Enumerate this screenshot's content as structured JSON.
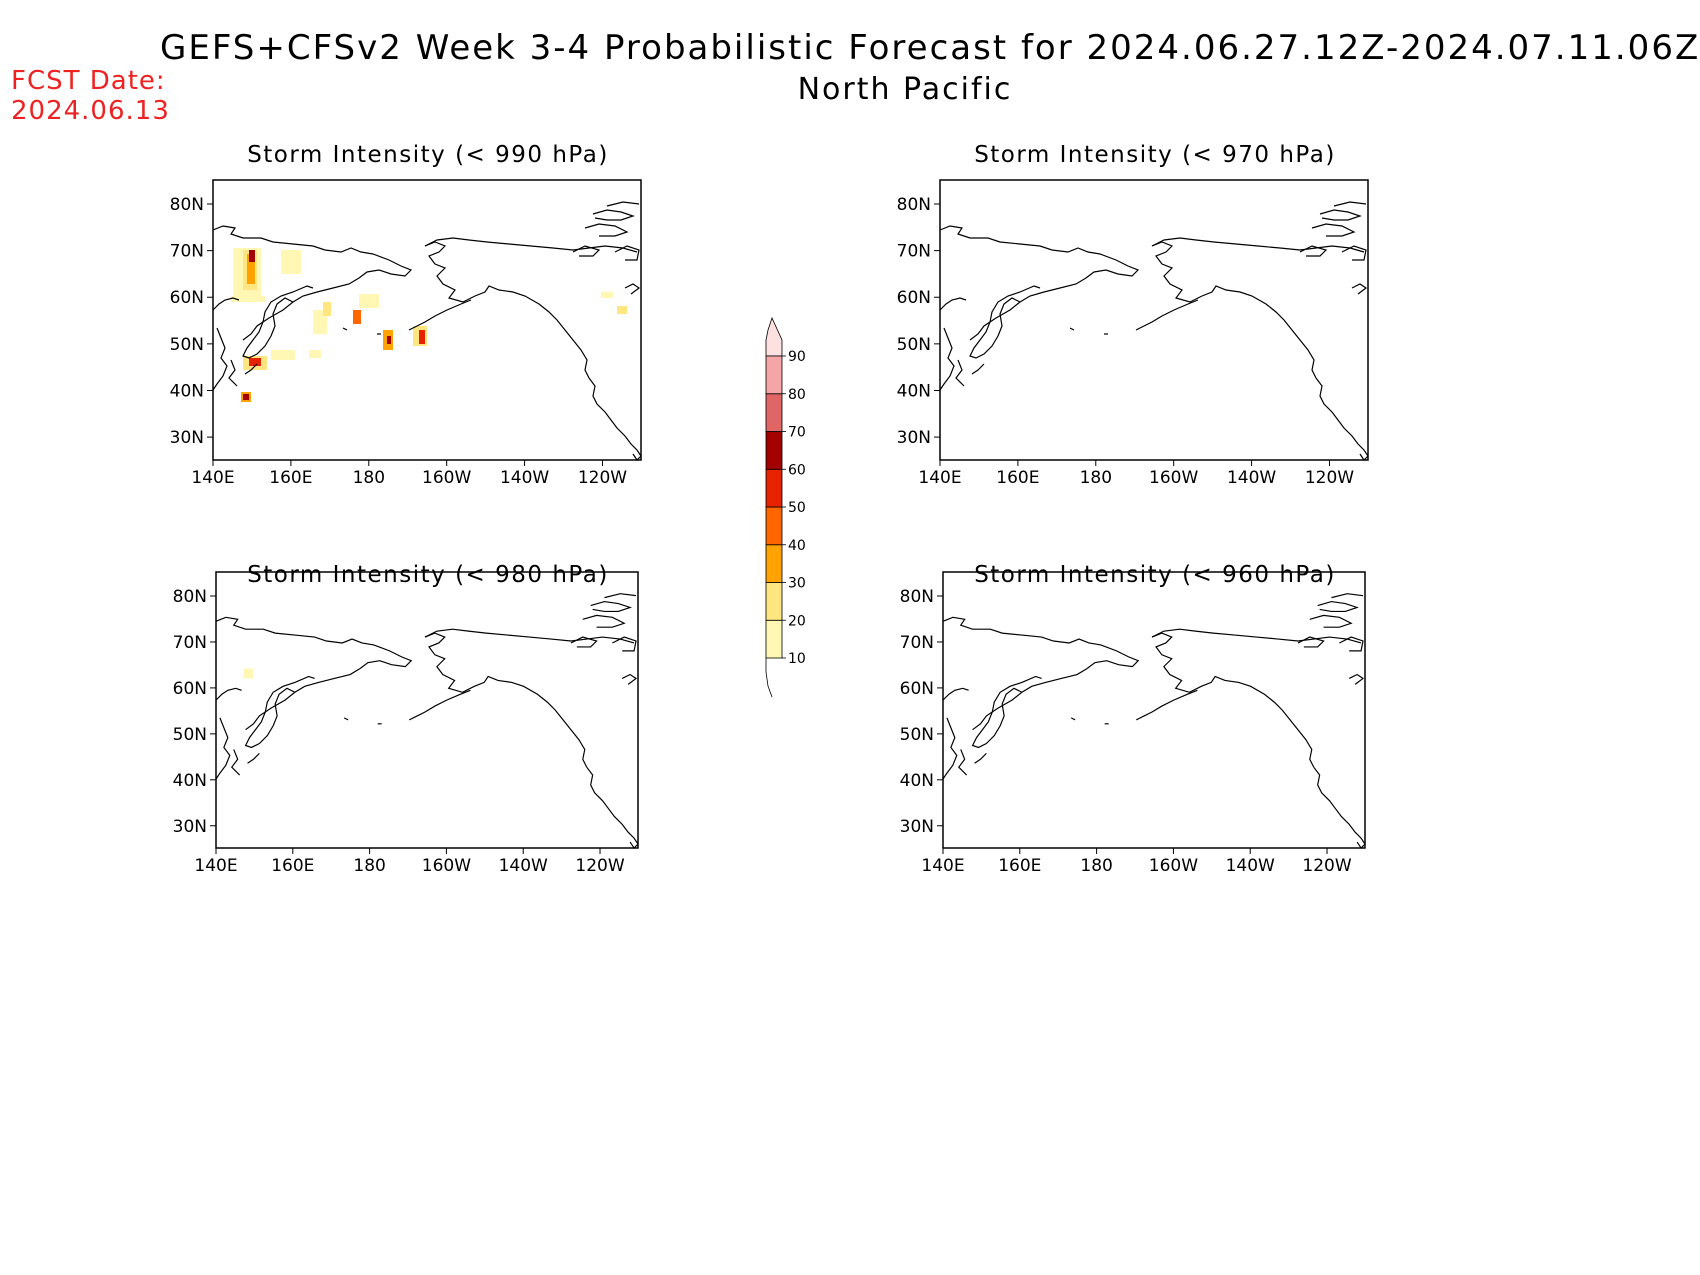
{
  "header": {
    "title": "GEFS+CFSv2 Week 3-4 Probabilistic Forecast for 2024.06.27.12Z-2024.07.11.06Z",
    "region": "North Pacific",
    "fcst_label": "FCST Date:",
    "fcst_date": "2024.06.13"
  },
  "panels": [
    {
      "title": "Storm Intensity (< 990 hPa)"
    },
    {
      "title": "Storm Intensity (< 970 hPa)"
    },
    {
      "title": "Storm Intensity (< 980 hPa)"
    },
    {
      "title": "Storm Intensity (< 960 hPa)"
    }
  ],
  "axes": {
    "x_ticks": [
      "140E",
      "160E",
      "180",
      "160W",
      "140W",
      "120W"
    ],
    "y_ticks": [
      "80N",
      "70N",
      "60N",
      "50N",
      "40N",
      "30N"
    ]
  },
  "colorbar": {
    "levels": [
      "10",
      "20",
      "30",
      "40",
      "50",
      "60",
      "70",
      "80",
      "90"
    ],
    "colors": [
      "#fff7b3",
      "#ffe680",
      "#ffa300",
      "#ff6600",
      "#e62200",
      "#a30000",
      "#e06666",
      "#f4a6a6",
      "#fde0e0"
    ]
  }
}
